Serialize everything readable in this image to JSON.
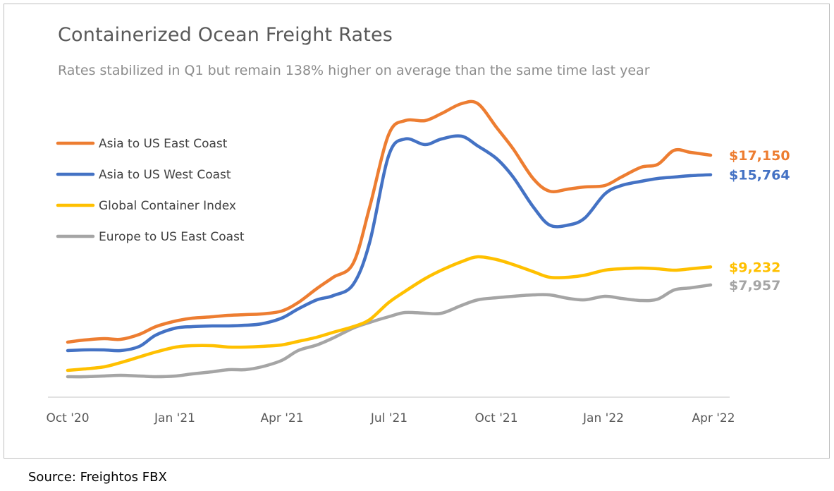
{
  "title": "Containerized Ocean Freight Rates",
  "subtitle": "Rates stabilized in Q1 but remain 138% higher on average than the same time last year",
  "source": "Source:  Freightos FBX",
  "chart_data": {
    "type": "line",
    "title": "Containerized Ocean Freight Rates",
    "subtitle": "Rates stabilized in Q1 but remain 138% higher on average than the same time last year",
    "xlabel": "",
    "ylabel": "",
    "x_tick_labels": [
      "Oct '20",
      "Jan '21",
      "Apr '21",
      "Jul '21",
      "Oct '21",
      "Jan '22",
      "Apr '22"
    ],
    "ylim": [
      0,
      22000
    ],
    "y_axis_shown": false,
    "grid": false,
    "legend_position": "top-left",
    "x": [
      "2020-10-01",
      "2020-10-15",
      "2020-11-01",
      "2020-11-15",
      "2020-12-01",
      "2020-12-15",
      "2021-01-01",
      "2021-01-15",
      "2021-02-01",
      "2021-02-15",
      "2021-03-01",
      "2021-03-15",
      "2021-04-01",
      "2021-04-15",
      "2021-05-01",
      "2021-05-15",
      "2021-06-01",
      "2021-06-15",
      "2021-07-01",
      "2021-07-15",
      "2021-08-01",
      "2021-08-15",
      "2021-09-01",
      "2021-09-15",
      "2021-10-01",
      "2021-10-15",
      "2021-11-01",
      "2021-11-15",
      "2021-12-01",
      "2021-12-15",
      "2022-01-01",
      "2022-01-15",
      "2022-02-01",
      "2022-02-15",
      "2022-03-01",
      "2022-03-15",
      "2022-04-01"
    ],
    "series": [
      {
        "name": "Asia to US East Coast",
        "color": "#ED7D31",
        "values": [
          3900,
          4050,
          4150,
          4100,
          4450,
          5000,
          5400,
          5600,
          5700,
          5800,
          5850,
          5900,
          6100,
          6700,
          7700,
          8500,
          9500,
          13500,
          18600,
          19600,
          19600,
          20100,
          20800,
          20800,
          19100,
          17600,
          15500,
          14600,
          14750,
          14900,
          15000,
          15600,
          16300,
          16500,
          17500,
          17350,
          17150
        ],
        "end_label": "$17,150"
      },
      {
        "name": "Asia to US West Coast",
        "color": "#4472C4",
        "values": [
          3300,
          3350,
          3350,
          3300,
          3600,
          4400,
          4900,
          5000,
          5050,
          5050,
          5100,
          5200,
          5600,
          6250,
          6900,
          7200,
          8000,
          11000,
          17100,
          18300,
          17900,
          18300,
          18500,
          17800,
          16900,
          15600,
          13500,
          12200,
          12200,
          12700,
          14400,
          15000,
          15300,
          15500,
          15600,
          15700,
          15764
        ],
        "end_label": "$15,764"
      },
      {
        "name": "Global Container Index",
        "color": "#FFC000",
        "values": [
          1900,
          2000,
          2150,
          2450,
          2850,
          3200,
          3550,
          3650,
          3650,
          3550,
          3550,
          3600,
          3700,
          3950,
          4250,
          4600,
          5000,
          5500,
          6700,
          7500,
          8400,
          9000,
          9600,
          9950,
          9750,
          9400,
          8900,
          8500,
          8500,
          8650,
          9000,
          9100,
          9150,
          9100,
          9000,
          9100,
          9232
        ],
        "end_label": "$9,232"
      },
      {
        "name": "Europe to US East Coast",
        "color": "#A5A5A5",
        "values": [
          1450,
          1450,
          1500,
          1550,
          1500,
          1450,
          1500,
          1650,
          1800,
          1950,
          1950,
          2150,
          2600,
          3300,
          3700,
          4200,
          4900,
          5300,
          5700,
          6000,
          5950,
          5950,
          6500,
          6900,
          7050,
          7150,
          7250,
          7250,
          7000,
          6900,
          7150,
          7000,
          6850,
          6950,
          7600,
          7750,
          7957
        ],
        "end_label": "$7,957"
      }
    ]
  }
}
